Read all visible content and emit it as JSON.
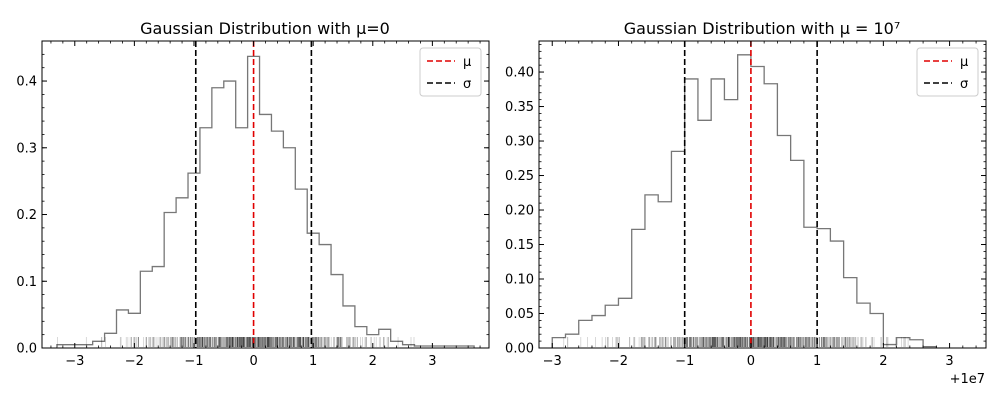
{
  "chart_data": [
    {
      "type": "histogram",
      "title": "Gaussian Distribution with μ=0",
      "xlim": [
        -3.55,
        3.95
      ],
      "ylim": [
        0,
        0.46
      ],
      "xticks": [
        -3,
        -2,
        -1,
        0,
        1,
        2,
        3
      ],
      "xtick_labels": [
        "−3",
        "−2",
        "−1",
        "0",
        "1",
        "2",
        "3"
      ],
      "yticks": [
        0,
        0.1,
        0.2,
        0.3,
        0.4
      ],
      "ytick_labels": [
        "0.0",
        "0.1",
        "0.2",
        "0.3",
        "0.4"
      ],
      "offset_label": "",
      "bin_edges": [
        -3.3,
        -3.1,
        -2.9,
        -2.7,
        -2.5,
        -2.3,
        -2.1,
        -1.9,
        -1.7,
        -1.5,
        -1.3,
        -1.1,
        -0.9,
        -0.7,
        -0.5,
        -0.3,
        -0.1,
        0.1,
        0.3,
        0.5,
        0.7,
        0.9,
        1.1,
        1.3,
        1.5,
        1.7,
        1.9,
        2.1,
        2.3,
        2.5,
        2.7,
        2.9,
        3.1,
        3.3,
        3.5,
        3.7
      ],
      "density": [
        0.005,
        0.005,
        0.005,
        0.01,
        0.022,
        0.057,
        0.052,
        0.115,
        0.122,
        0.203,
        0.225,
        0.262,
        0.33,
        0.39,
        0.4,
        0.33,
        0.437,
        0.35,
        0.325,
        0.3,
        0.238,
        0.172,
        0.155,
        0.11,
        0.063,
        0.032,
        0.02,
        0.028,
        0.01,
        0.005,
        0.003,
        0.003,
        0.003,
        0.003,
        0.003
      ],
      "mean_line": 0,
      "sigma_lines": [
        -0.97,
        0.97
      ],
      "legend": [
        {
          "label": "μ",
          "color": "#e00000"
        },
        {
          "label": "σ",
          "color": "#000000"
        }
      ],
      "legend_position": "upper-right",
      "rug": true
    },
    {
      "type": "histogram",
      "title": "Gaussian Distribution with μ = 10⁷",
      "xlim": [
        -3.2,
        3.55
      ],
      "ylim": [
        0,
        0.445
      ],
      "xticks": [
        -3,
        -2,
        -1,
        0,
        1,
        2,
        3
      ],
      "xtick_labels": [
        "−3",
        "−2",
        "−1",
        "0",
        "1",
        "2",
        "3"
      ],
      "yticks": [
        0,
        0.05,
        0.1,
        0.15,
        0.2,
        0.25,
        0.3,
        0.35,
        0.4
      ],
      "ytick_labels": [
        "0.00",
        "0.05",
        "0.10",
        "0.15",
        "0.20",
        "0.25",
        "0.30",
        "0.35",
        "0.40"
      ],
      "offset_label": "+1e7",
      "bin_edges": [
        -3.0,
        -2.8,
        -2.6,
        -2.4,
        -2.2,
        -2.0,
        -1.8,
        -1.6,
        -1.4,
        -1.2,
        -1.0,
        -0.8,
        -0.6,
        -0.4,
        -0.2,
        0.0,
        0.2,
        0.4,
        0.6,
        0.8,
        1.0,
        1.2,
        1.4,
        1.6,
        1.8,
        2.0,
        2.2,
        2.4,
        2.6,
        2.8
      ],
      "density": [
        0.015,
        0.02,
        0.04,
        0.047,
        0.062,
        0.072,
        0.172,
        0.222,
        0.212,
        0.285,
        0.39,
        0.33,
        0.39,
        0.36,
        0.425,
        0.408,
        0.383,
        0.308,
        0.272,
        0.175,
        0.173,
        0.155,
        0.102,
        0.065,
        0.05,
        0.005,
        0.015,
        0.012,
        0.002
      ],
      "mean_line": 0,
      "sigma_lines": [
        -1.0,
        1.0
      ],
      "legend": [
        {
          "label": "μ",
          "color": "#e00000"
        },
        {
          "label": "σ",
          "color": "#000000"
        }
      ],
      "legend_position": "upper-right",
      "rug": true
    }
  ]
}
